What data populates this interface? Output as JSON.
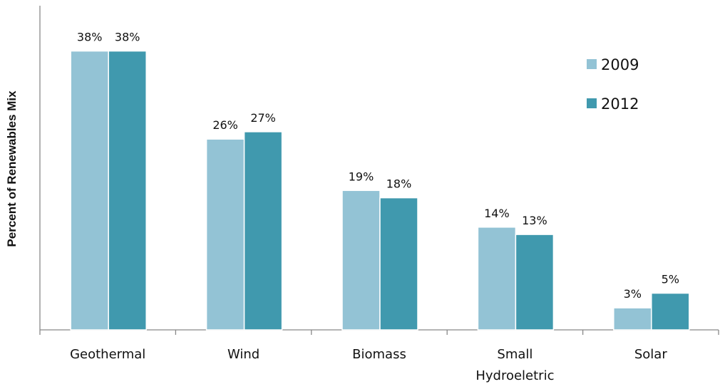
{
  "chart_data": {
    "type": "bar",
    "title": "",
    "xlabel": "",
    "ylabel": "Percent of Renewables Mix",
    "categories": [
      "Geothermal",
      "Wind",
      "Biomass",
      "Small Hydroeletric",
      "Solar"
    ],
    "series": [
      {
        "name": "2009",
        "color": "#93c3d5",
        "values": [
          38,
          26,
          19,
          14,
          3
        ],
        "labels": [
          "38%",
          "26%",
          "19%",
          "14%",
          "3%"
        ]
      },
      {
        "name": "2012",
        "color": "#4099ae",
        "values": [
          38,
          27,
          18,
          13,
          5
        ],
        "labels": [
          "38%",
          "27%",
          "18%",
          "13%",
          "5%"
        ]
      }
    ],
    "ylim": [
      0,
      40
    ],
    "grid": false,
    "legend_position": "top-right"
  }
}
